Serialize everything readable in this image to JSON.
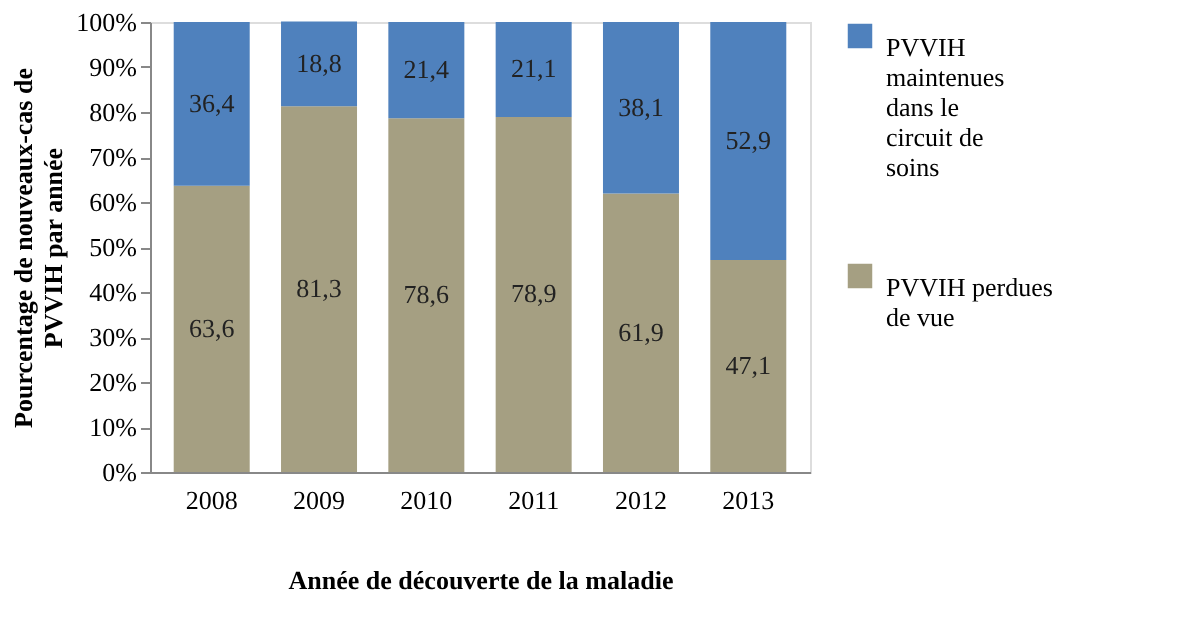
{
  "chart_data": {
    "type": "bar",
    "stacked": true,
    "xlabel": "Année de découverte de la maladie",
    "ylabel": "Pourcentage de nouveaux-cas de PVVIH par année",
    "categories": [
      "2008",
      "2009",
      "2010",
      "2011",
      "2012",
      "2013"
    ],
    "series": [
      {
        "name": "PVVIH perdues de vue",
        "color": "#a59f82",
        "values": [
          63.6,
          81.3,
          78.6,
          78.9,
          61.9,
          47.1
        ],
        "value_labels": [
          "63,6",
          "81,3",
          "78,6",
          "78,9",
          "61,9",
          "47,1"
        ]
      },
      {
        "name": "PVVIH maintenues dans le circuit de soins",
        "color": "#4f81bd",
        "values": [
          36.4,
          18.8,
          21.4,
          21.1,
          38.1,
          52.9
        ],
        "value_labels": [
          "36,4",
          "18,8",
          "21,4",
          "21,1",
          "38,1",
          "52,9"
        ]
      }
    ],
    "ylim": [
      0,
      100
    ],
    "yticks": [
      {
        "value": 0,
        "label": "0%"
      },
      {
        "value": 10,
        "label": "10%"
      },
      {
        "value": 20,
        "label": "20%"
      },
      {
        "value": 30,
        "label": "30%"
      },
      {
        "value": 40,
        "label": "40%"
      },
      {
        "value": 50,
        "label": "50%"
      },
      {
        "value": 60,
        "label": "60%"
      },
      {
        "value": 70,
        "label": "70%"
      },
      {
        "value": 80,
        "label": "80%"
      },
      {
        "value": 90,
        "label": "90%"
      },
      {
        "value": 100,
        "label": "100%"
      }
    ],
    "legend": "right",
    "grid": false
  }
}
